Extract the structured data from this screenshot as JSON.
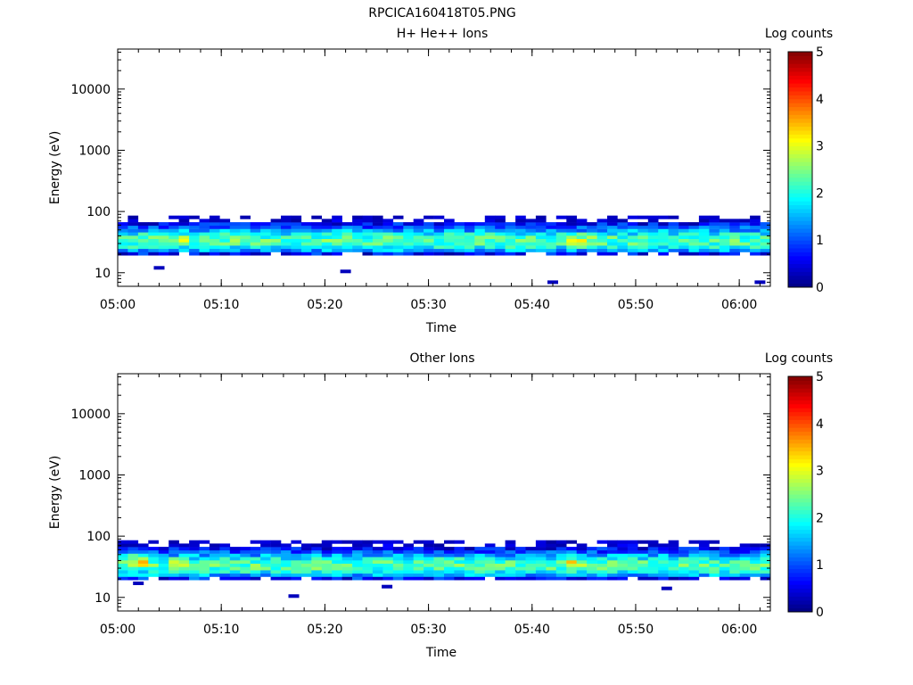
{
  "figure_title": "RPCICA160418T05.PNG",
  "colorscale": [
    "#00007f",
    "#0000ff",
    "#007fff",
    "#00ffff",
    "#7fff7f",
    "#ffff00",
    "#ff7f00",
    "#ff0000",
    "#7f0000"
  ],
  "chart_data": [
    {
      "type": "heatmap",
      "title": "H+ He++ Ions",
      "xlabel": "Time",
      "ylabel": "Energy (eV)",
      "x_ticks": [
        "05:00",
        "05:10",
        "05:20",
        "05:30",
        "05:40",
        "05:50",
        "06:00"
      ],
      "x_range": [
        "05:00",
        "06:03"
      ],
      "y_scale": "log",
      "y_ticks": [
        "10",
        "100",
        "1000",
        "10000"
      ],
      "y_range": [
        6,
        45000
      ],
      "colorbar": {
        "label": "Log counts",
        "ticks": [
          "0",
          "1",
          "2",
          "3",
          "4",
          "5"
        ],
        "range": [
          0,
          5
        ]
      },
      "band": {
        "core_energy_eV": [
          25,
          45
        ],
        "upper_edge_eV": 90,
        "lower_edge_eV": 20,
        "peak_log_counts": 3.1
      },
      "hot_spots": [
        {
          "time": "05:06",
          "energy_eV": 35,
          "log_counts": 2.8
        },
        {
          "time": "05:44",
          "energy_eV": 35,
          "log_counts": 3.1
        },
        {
          "time": "05:45",
          "energy_eV": 33,
          "log_counts": 3.0
        }
      ],
      "isolated_low_points": [
        {
          "time": "05:04",
          "energy_eV": 12
        },
        {
          "time": "05:22",
          "energy_eV": 10.5
        },
        {
          "time": "05:42",
          "energy_eV": 7
        },
        {
          "time": "06:02",
          "energy_eV": 7
        }
      ]
    },
    {
      "type": "heatmap",
      "title": "Other Ions",
      "xlabel": "Time",
      "ylabel": "Energy (eV)",
      "x_ticks": [
        "05:00",
        "05:10",
        "05:20",
        "05:30",
        "05:40",
        "05:50",
        "06:00"
      ],
      "x_range": [
        "05:00",
        "06:03"
      ],
      "y_scale": "log",
      "y_ticks": [
        "10",
        "100",
        "1000",
        "10000"
      ],
      "y_range": [
        6,
        45000
      ],
      "colorbar": {
        "label": "Log counts",
        "ticks": [
          "0",
          "1",
          "2",
          "3",
          "4",
          "5"
        ],
        "range": [
          0,
          5
        ]
      },
      "band": {
        "core_energy_eV": [
          25,
          45
        ],
        "upper_edge_eV": 90,
        "lower_edge_eV": 20,
        "peak_log_counts": 3.3
      },
      "hot_spots": [
        {
          "time": "05:02",
          "energy_eV": 38,
          "log_counts": 3.3
        },
        {
          "time": "05:06",
          "energy_eV": 36,
          "log_counts": 2.9
        },
        {
          "time": "05:44",
          "energy_eV": 35,
          "log_counts": 3.2
        }
      ],
      "isolated_low_points": [
        {
          "time": "05:02",
          "energy_eV": 17
        },
        {
          "time": "05:17",
          "energy_eV": 10.5
        },
        {
          "time": "05:26",
          "energy_eV": 15
        },
        {
          "time": "05:53",
          "energy_eV": 14
        }
      ]
    }
  ]
}
